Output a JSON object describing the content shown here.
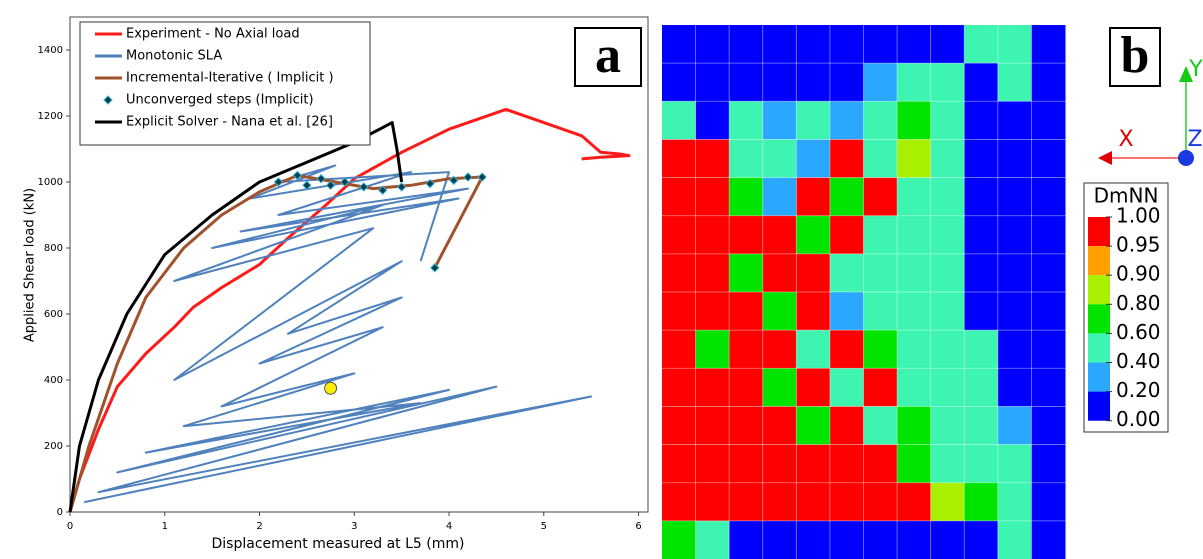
{
  "chart_data": [
    {
      "type": "line",
      "panel_label": "a",
      "xlabel": "Displacement measured at L5 (mm)",
      "ylabel": "Applied Shear load (kN)",
      "xlim": [
        0,
        6.1
      ],
      "ylim": [
        0,
        1500
      ],
      "xticks": [
        0,
        1,
        2,
        3,
        4,
        5,
        6
      ],
      "yticks": [
        0,
        200,
        400,
        600,
        800,
        1000,
        1200,
        1400
      ],
      "series": [
        {
          "name": "Experiment - No Axial load",
          "color": "#ff1a1a",
          "style": "line",
          "x": [
            0,
            0.1,
            0.3,
            0.5,
            0.8,
            1.1,
            1.3,
            1.6,
            2,
            2.3,
            2.7,
            3,
            3.5,
            4,
            4.3,
            4.6,
            5,
            5.4,
            5.6,
            5.8,
            5.9,
            5.6,
            5.4
          ],
          "values": [
            0,
            100,
            250,
            380,
            480,
            560,
            620,
            680,
            750,
            830,
            930,
            1010,
            1090,
            1160,
            1190,
            1220,
            1180,
            1140,
            1090,
            1085,
            1080,
            1075,
            1070
          ]
        },
        {
          "name": "Monotonic SLA",
          "color": "#4f81bd",
          "style": "line",
          "x": [
            0.15,
            5.5,
            0.3,
            4.5,
            0.5,
            4,
            0.8,
            3.7,
            1.2,
            3,
            1.6,
            3.3,
            2,
            3.5,
            2.3,
            3.5,
            1.1,
            3.2,
            1.1,
            3.3,
            1.5,
            4.1,
            1.8,
            4.2,
            2.2,
            3.6,
            1.9,
            2.8,
            2.2,
            4,
            3.7
          ],
          "values": [
            30,
            350,
            60,
            380,
            120,
            370,
            180,
            330,
            260,
            420,
            320,
            560,
            450,
            650,
            540,
            760,
            400,
            860,
            700,
            930,
            800,
            950,
            850,
            980,
            900,
            1030,
            950,
            1050,
            1000,
            1030,
            760
          ]
        },
        {
          "name": "Incremental-Iterative ( Implicit )",
          "color": "#a0522d",
          "style": "line",
          "x": [
            0,
            0.2,
            0.5,
            0.8,
            1.2,
            1.6,
            2,
            2.4,
            2.8,
            3.2,
            3.6,
            4,
            4.35,
            3.85
          ],
          "values": [
            0,
            200,
            450,
            650,
            800,
            900,
            970,
            1020,
            1000,
            980,
            990,
            1010,
            1015,
            740
          ]
        },
        {
          "name": "Unconverged steps (Implicit)",
          "color": "#0b3d4d",
          "style": "marker",
          "x": [
            2.2,
            2.4,
            2.5,
            2.65,
            2.75,
            2.9,
            3.1,
            3.3,
            3.5,
            3.8,
            4.05,
            4.2,
            4.35,
            3.85
          ],
          "values": [
            1000,
            1020,
            990,
            1010,
            990,
            1000,
            985,
            975,
            985,
            995,
            1005,
            1015,
            1015,
            740
          ]
        },
        {
          "name": "Explicit Solver - Nana et al. [26]",
          "color": "#000000",
          "style": "line",
          "x": [
            0,
            0.1,
            0.3,
            0.6,
            1,
            1.5,
            2,
            2.5,
            3,
            3.4,
            3.45,
            3.5
          ],
          "values": [
            0,
            200,
            400,
            600,
            780,
            900,
            1000,
            1060,
            1120,
            1180,
            1100,
            1000
          ]
        }
      ],
      "highlight": {
        "x": 2.75,
        "y": 375,
        "color": "#ffee00"
      }
    },
    {
      "type": "heatmap",
      "panel_label": "b",
      "colorbar_title": "DmNN",
      "axis_labels": [
        "X",
        "Y",
        "Z"
      ],
      "levels": [
        {
          "value": 1,
          "label": "1.00"
        },
        {
          "value": 0.95,
          "label": "0.95"
        },
        {
          "value": 0.9,
          "label": "0.90"
        },
        {
          "value": 0.8,
          "label": "0.80"
        },
        {
          "value": 0.6,
          "label": "0.60"
        },
        {
          "value": 0.4,
          "label": "0.40"
        },
        {
          "value": 0.2,
          "label": "0.20"
        },
        {
          "value": 0,
          "label": "0.00"
        }
      ],
      "colors": [
        "#ff0000",
        "#ff9f00",
        "#a8f000",
        "#00e400",
        "#3df5b0",
        "#2aa7ff",
        "#0000ff"
      ],
      "values": [
        [
          0.1,
          0.1,
          0.1,
          0.1,
          0.1,
          0.1,
          0.1,
          0.1,
          0.1,
          0.5,
          0.5,
          0.1
        ],
        [
          0.1,
          0.1,
          0.1,
          0.1,
          0.1,
          0.1,
          0.3,
          0.5,
          0.5,
          0.1,
          0.5,
          0.1
        ],
        [
          0.5,
          0.1,
          0.5,
          0.3,
          0.5,
          0.3,
          0.5,
          0.7,
          0.5,
          0.1,
          0.1,
          0.1
        ],
        [
          0.98,
          0.98,
          0.5,
          0.5,
          0.3,
          0.98,
          0.5,
          0.85,
          0.5,
          0.1,
          0.1,
          0.1
        ],
        [
          0.98,
          0.98,
          0.7,
          0.3,
          0.98,
          0.7,
          0.98,
          0.5,
          0.5,
          0.1,
          0.1,
          0.1
        ],
        [
          0.98,
          0.98,
          0.98,
          0.98,
          0.7,
          0.98,
          0.5,
          0.5,
          0.5,
          0.1,
          0.1,
          0.1
        ],
        [
          0.98,
          0.98,
          0.7,
          0.98,
          0.98,
          0.5,
          0.5,
          0.5,
          0.5,
          0.1,
          0.1,
          0.1
        ],
        [
          0.98,
          0.98,
          0.98,
          0.7,
          0.98,
          0.3,
          0.5,
          0.5,
          0.5,
          0.1,
          0.1,
          0.1
        ],
        [
          0.98,
          0.7,
          0.98,
          0.98,
          0.5,
          0.98,
          0.7,
          0.5,
          0.5,
          0.5,
          0.1,
          0.1
        ],
        [
          0.98,
          0.98,
          0.98,
          0.7,
          0.98,
          0.5,
          0.98,
          0.5,
          0.5,
          0.5,
          0.1,
          0.1
        ],
        [
          0.98,
          0.98,
          0.98,
          0.98,
          0.7,
          0.98,
          0.5,
          0.7,
          0.5,
          0.5,
          0.3,
          0.1
        ],
        [
          0.98,
          0.98,
          0.98,
          0.98,
          0.98,
          0.98,
          0.98,
          0.7,
          0.5,
          0.5,
          0.5,
          0.1
        ],
        [
          0.98,
          0.98,
          0.98,
          0.98,
          0.98,
          0.98,
          0.98,
          0.98,
          0.85,
          0.7,
          0.5,
          0.1
        ],
        [
          0.7,
          0.5,
          0.1,
          0.1,
          0.1,
          0.1,
          0.1,
          0.1,
          0.1,
          0.1,
          0.5,
          0.1
        ]
      ]
    }
  ]
}
